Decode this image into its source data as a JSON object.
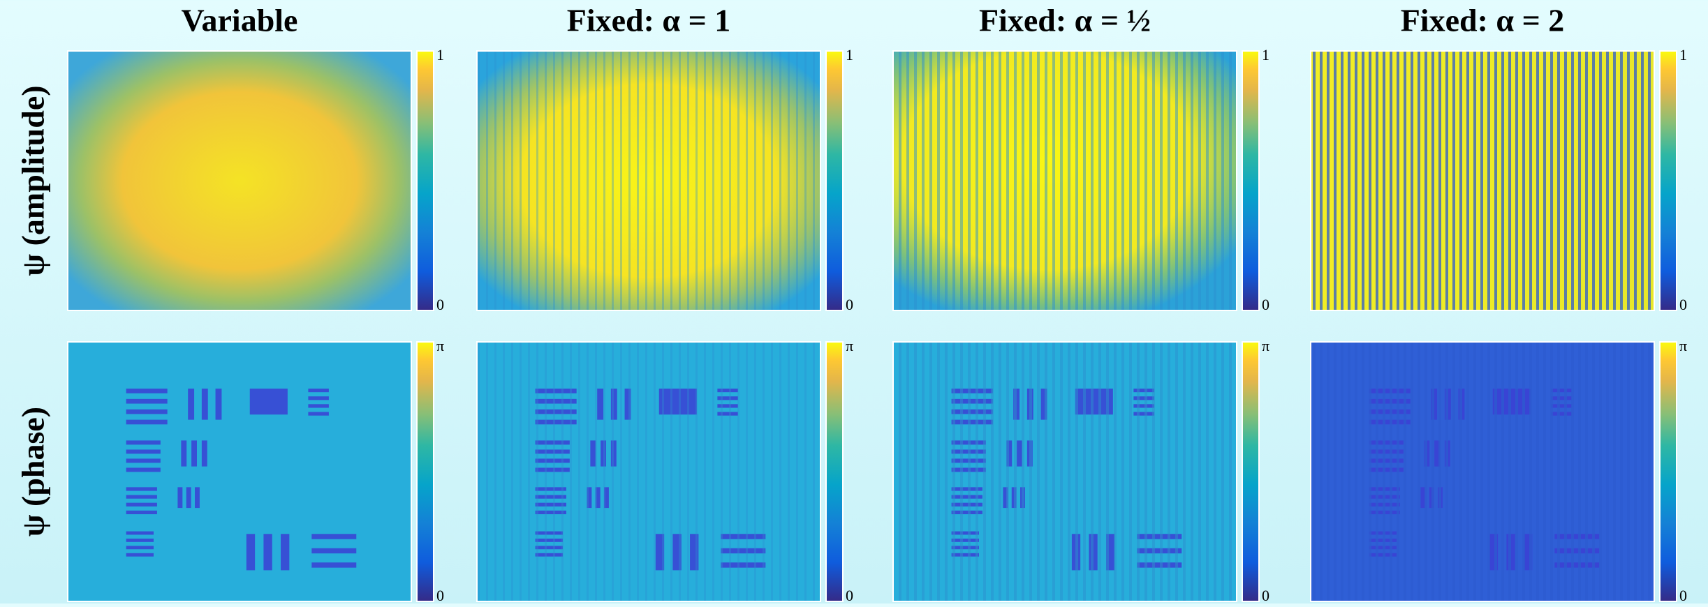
{
  "columns": [
    {
      "title": "Variable"
    },
    {
      "title": "Fixed: α = 1"
    },
    {
      "title": "Fixed: α = ½"
    },
    {
      "title": "Fixed: α = 2"
    }
  ],
  "rows": [
    {
      "label": "ψ (amplitude)",
      "colorbar_max": "1",
      "colorbar_min": "0"
    },
    {
      "label": "ψ (phase)",
      "colorbar_max": "π",
      "colorbar_min": "0"
    }
  ]
}
